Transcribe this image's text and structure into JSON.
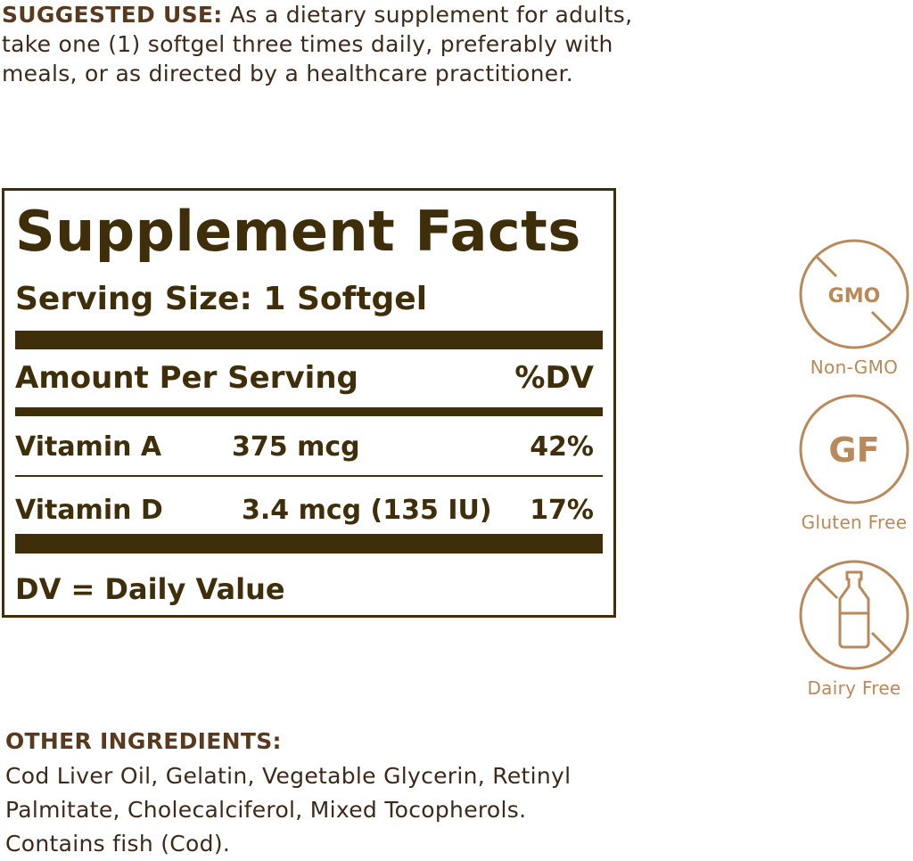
{
  "suggested_use": {
    "label": "SUGGESTED USE:",
    "lines": [
      " As a dietary supplement for adults,",
      "take one (1) softgel three times daily, preferably with",
      "meals, or as directed by a healthcare practitioner."
    ]
  },
  "facts": {
    "title": "Supplement Facts",
    "serving_size": "Serving Size: 1 Softgel",
    "header_left": "Amount Per Serving",
    "header_right": "%DV",
    "rows": [
      {
        "name": "Vitamin A",
        "amount": "375 mcg",
        "dv": "42%"
      },
      {
        "name": "Vitamin D",
        "amount": "3.4 mcg (135 IU)",
        "dv": "17%"
      }
    ],
    "footnote": "DV = Daily Value",
    "color": "#3f2e0a"
  },
  "badges": [
    {
      "icon": "no-gmo-icon",
      "text": "GMO",
      "label": "Non-GMO"
    },
    {
      "icon": "gluten-free-icon",
      "text": "GF",
      "label": "Gluten Free"
    },
    {
      "icon": "no-dairy-bottle-icon",
      "label": "Dairy Free"
    }
  ],
  "badge_color": "#b8895a",
  "other_ingredients": {
    "heading": "OTHER INGREDIENTS:",
    "lines": [
      "Cod Liver Oil, Gelatin, Vegetable Glycerin, Retinyl",
      "Palmitate, Cholecalciferol, Mixed Tocopherols.",
      "Contains fish (Cod)."
    ]
  }
}
